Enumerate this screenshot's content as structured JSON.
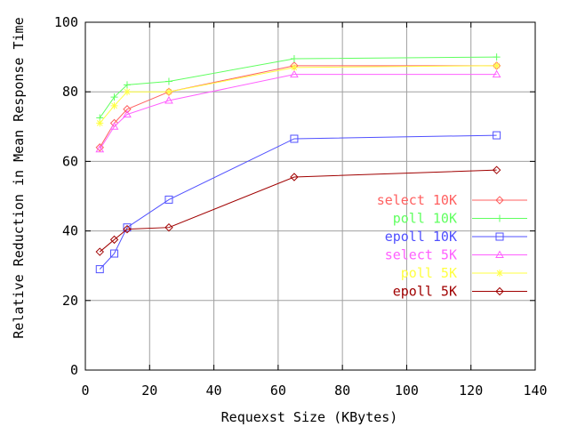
{
  "chart_data": {
    "type": "line",
    "xlabel": "Requexst Size (KBytes)",
    "ylabel": "Relative Reduction in Mean  Response Time",
    "xlim": [
      0,
      140
    ],
    "ylim": [
      0,
      100
    ],
    "xticks": [
      0,
      20,
      40,
      60,
      80,
      100,
      120,
      140
    ],
    "yticks": [
      0,
      20,
      40,
      60,
      80,
      100
    ],
    "xtick_labels": [
      "0",
      "20",
      "40",
      "60",
      "80",
      "100",
      "120",
      "140"
    ],
    "ytick_labels": [
      "0",
      "20",
      "40",
      "60",
      "80",
      "100"
    ],
    "grid": true,
    "legend_position": "right",
    "series": [
      {
        "name": "select 10K",
        "color": "#ff6060",
        "marker": "diamond",
        "x": [
          4.5,
          9,
          13,
          26,
          65,
          128
        ],
        "y": [
          64,
          71,
          75,
          80,
          87.5,
          87.5
        ]
      },
      {
        "name": "poll 10K",
        "color": "#60ff60",
        "marker": "plus",
        "x": [
          4.5,
          9,
          13,
          26,
          65,
          128
        ],
        "y": [
          72.5,
          78.5,
          82,
          83,
          89.5,
          90
        ]
      },
      {
        "name": "epoll 10K",
        "color": "#5050ff",
        "marker": "square",
        "x": [
          4.5,
          9,
          13,
          26,
          65,
          128
        ],
        "y": [
          29,
          33.5,
          41,
          49,
          66.5,
          67.5
        ]
      },
      {
        "name": "select 5K",
        "color": "#ff60ff",
        "marker": "triangle",
        "x": [
          4.5,
          9,
          13,
          26,
          65,
          128
        ],
        "y": [
          63.5,
          70,
          73.5,
          77.5,
          85,
          85
        ]
      },
      {
        "name": "poll 5K",
        "color": "#ffff40",
        "marker": "star",
        "x": [
          4.5,
          9,
          13,
          26,
          65,
          128
        ],
        "y": [
          71,
          76,
          80,
          80,
          87,
          87.5
        ]
      },
      {
        "name": "epoll 5K",
        "color": "#a00000",
        "marker": "diamond",
        "x": [
          4.5,
          9,
          13,
          26,
          65,
          128
        ],
        "y": [
          34,
          37.5,
          40.5,
          41,
          55.5,
          57.5
        ]
      }
    ]
  }
}
